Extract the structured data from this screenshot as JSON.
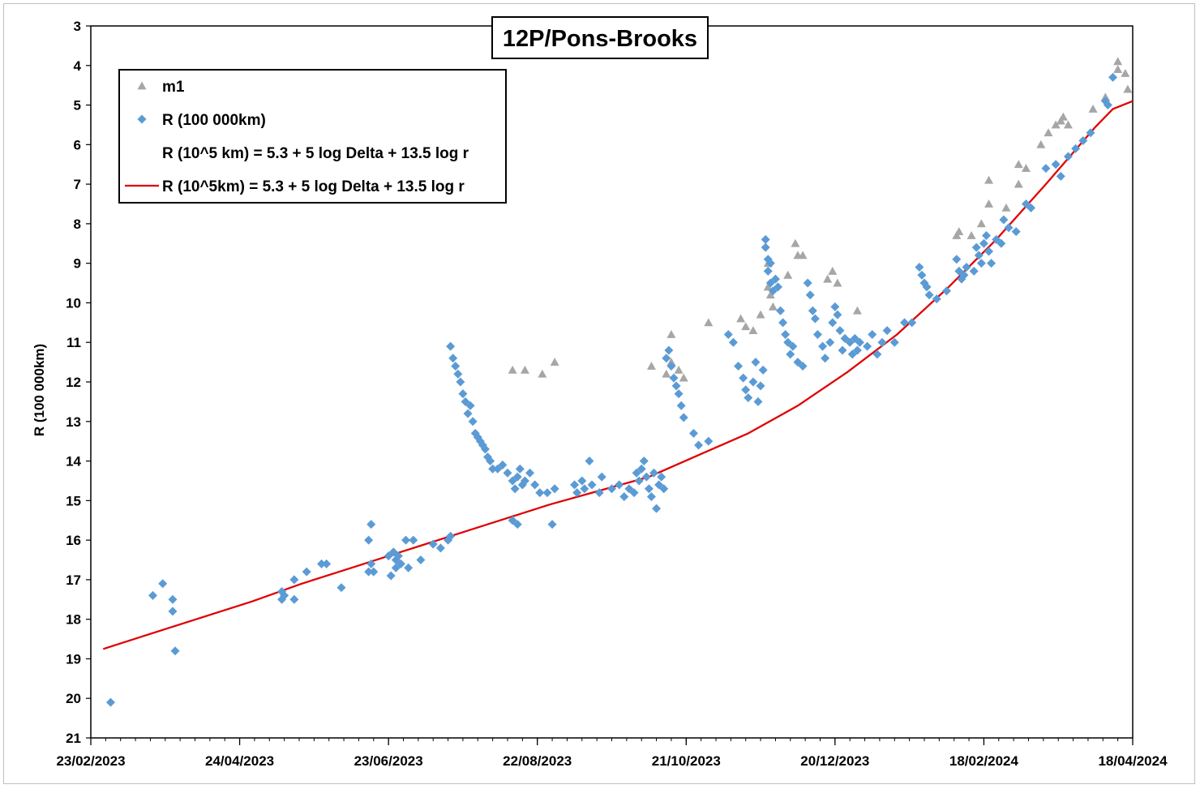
{
  "chart_data": {
    "type": "scatter",
    "title": "12P/Pons-Brooks",
    "ylabel": "R (100 000km)",
    "xlabel": "",
    "x_tick_labels": [
      "23/02/2023",
      "24/04/2023",
      "23/06/2023",
      "22/08/2023",
      "21/10/2023",
      "20/12/2023",
      "18/02/2024",
      "18/04/2024"
    ],
    "x_ticks": [
      "2023-02-23",
      "2023-04-24",
      "2023-06-23",
      "2023-08-22",
      "2023-10-21",
      "2023-12-20",
      "2024-02-18",
      "2024-04-18"
    ],
    "xlim": [
      "2023-02-23",
      "2024-04-18"
    ],
    "ylim": [
      3,
      21
    ],
    "y_inverted": true,
    "y_ticks": [
      3,
      4,
      5,
      6,
      7,
      8,
      9,
      10,
      11,
      12,
      13,
      14,
      15,
      16,
      17,
      18,
      19,
      20,
      21
    ],
    "grid": false,
    "legend_position": "top-left",
    "colors": {
      "m1": "#a6a6a6",
      "R": "#5b9bd5",
      "model": "#e00000"
    },
    "series": [
      {
        "name": "m1",
        "marker": "triangle",
        "points": [
          [
            "2023-08-12",
            11.7
          ],
          [
            "2023-08-17",
            11.7
          ],
          [
            "2023-08-24",
            11.8
          ],
          [
            "2023-08-29",
            11.5
          ],
          [
            "2023-10-07",
            11.6
          ],
          [
            "2023-10-13",
            11.8
          ],
          [
            "2023-10-15",
            11.5
          ],
          [
            "2023-10-18",
            11.7
          ],
          [
            "2023-10-20",
            11.9
          ],
          [
            "2023-10-15",
            10.8
          ],
          [
            "2023-10-30",
            10.5
          ],
          [
            "2023-11-12",
            10.4
          ],
          [
            "2023-11-14",
            10.6
          ],
          [
            "2023-11-17",
            10.7
          ],
          [
            "2023-11-20",
            10.3
          ],
          [
            "2023-11-23",
            9.0
          ],
          [
            "2023-11-23",
            9.6
          ],
          [
            "2023-11-24",
            9.8
          ],
          [
            "2023-11-25",
            10.1
          ],
          [
            "2023-12-01",
            9.3
          ],
          [
            "2023-12-04",
            8.5
          ],
          [
            "2023-12-05",
            8.8
          ],
          [
            "2023-12-07",
            8.8
          ],
          [
            "2023-12-17",
            9.4
          ],
          [
            "2023-12-19",
            9.2
          ],
          [
            "2023-12-21",
            9.5
          ],
          [
            "2023-12-29",
            10.2
          ],
          [
            "2024-02-07",
            8.3
          ],
          [
            "2024-02-08",
            8.2
          ],
          [
            "2024-02-13",
            8.3
          ],
          [
            "2024-02-17",
            8.0
          ],
          [
            "2024-02-20",
            7.5
          ],
          [
            "2024-02-20",
            6.9
          ],
          [
            "2024-02-27",
            7.6
          ],
          [
            "2024-03-03",
            6.5
          ],
          [
            "2024-03-03",
            7.0
          ],
          [
            "2024-03-06",
            6.6
          ],
          [
            "2024-03-12",
            6.0
          ],
          [
            "2024-03-15",
            5.7
          ],
          [
            "2024-03-18",
            5.5
          ],
          [
            "2024-03-20",
            5.4
          ],
          [
            "2024-03-21",
            5.3
          ],
          [
            "2024-03-23",
            5.5
          ],
          [
            "2024-04-02",
            5.1
          ],
          [
            "2024-04-07",
            4.8
          ],
          [
            "2024-04-12",
            3.9
          ],
          [
            "2024-04-12",
            4.1
          ],
          [
            "2024-04-15",
            4.2
          ],
          [
            "2024-04-16",
            4.6
          ]
        ]
      },
      {
        "name": "R (100 000km)",
        "marker": "diamond",
        "points": [
          [
            "2023-03-03",
            20.1
          ],
          [
            "2023-03-20",
            17.4
          ],
          [
            "2023-03-24",
            17.1
          ],
          [
            "2023-03-28",
            17.5
          ],
          [
            "2023-03-28",
            17.8
          ],
          [
            "2023-03-29",
            18.8
          ],
          [
            "2023-05-11",
            17.3
          ],
          [
            "2023-05-11",
            17.5
          ],
          [
            "2023-05-12",
            17.4
          ],
          [
            "2023-05-16",
            17.0
          ],
          [
            "2023-05-16",
            17.5
          ],
          [
            "2023-05-21",
            16.8
          ],
          [
            "2023-05-27",
            16.6
          ],
          [
            "2023-05-29",
            16.6
          ],
          [
            "2023-06-04",
            17.2
          ],
          [
            "2023-06-15",
            16.0
          ],
          [
            "2023-06-15",
            16.8
          ],
          [
            "2023-06-16",
            15.6
          ],
          [
            "2023-06-16",
            16.6
          ],
          [
            "2023-06-17",
            16.8
          ],
          [
            "2023-06-23",
            16.4
          ],
          [
            "2023-06-24",
            16.9
          ],
          [
            "2023-06-25",
            16.3
          ],
          [
            "2023-06-26",
            16.7
          ],
          [
            "2023-06-26",
            16.5
          ],
          [
            "2023-06-27",
            16.4
          ],
          [
            "2023-06-28",
            16.6
          ],
          [
            "2023-06-30",
            16.0
          ],
          [
            "2023-07-01",
            16.7
          ],
          [
            "2023-07-03",
            16.0
          ],
          [
            "2023-07-06",
            16.5
          ],
          [
            "2023-07-11",
            16.1
          ],
          [
            "2023-07-14",
            16.2
          ],
          [
            "2023-07-17",
            16.0
          ],
          [
            "2023-07-18",
            15.9
          ],
          [
            "2023-07-18",
            11.1
          ],
          [
            "2023-07-19",
            11.4
          ],
          [
            "2023-07-20",
            11.6
          ],
          [
            "2023-07-21",
            11.8
          ],
          [
            "2023-07-22",
            12.0
          ],
          [
            "2023-07-23",
            12.3
          ],
          [
            "2023-07-24",
            12.5
          ],
          [
            "2023-07-25",
            12.8
          ],
          [
            "2023-07-26",
            12.6
          ],
          [
            "2023-07-27",
            13.0
          ],
          [
            "2023-07-28",
            13.3
          ],
          [
            "2023-07-29",
            13.4
          ],
          [
            "2023-07-30",
            13.5
          ],
          [
            "2023-07-31",
            13.6
          ],
          [
            "2023-08-01",
            13.7
          ],
          [
            "2023-08-02",
            13.9
          ],
          [
            "2023-08-03",
            14.0
          ],
          [
            "2023-08-04",
            14.2
          ],
          [
            "2023-08-06",
            14.2
          ],
          [
            "2023-08-08",
            14.1
          ],
          [
            "2023-08-10",
            14.3
          ],
          [
            "2023-08-12",
            14.5
          ],
          [
            "2023-08-13",
            14.7
          ],
          [
            "2023-08-14",
            14.4
          ],
          [
            "2023-08-15",
            14.2
          ],
          [
            "2023-08-16",
            14.6
          ],
          [
            "2023-08-17",
            14.5
          ],
          [
            "2023-08-19",
            14.3
          ],
          [
            "2023-08-21",
            14.6
          ],
          [
            "2023-08-23",
            14.8
          ],
          [
            "2023-08-26",
            14.8
          ],
          [
            "2023-08-29",
            14.7
          ],
          [
            "2023-08-12",
            15.5
          ],
          [
            "2023-08-14",
            15.6
          ],
          [
            "2023-08-28",
            15.6
          ],
          [
            "2023-09-06",
            14.6
          ],
          [
            "2023-09-07",
            14.8
          ],
          [
            "2023-09-09",
            14.5
          ],
          [
            "2023-09-10",
            14.7
          ],
          [
            "2023-09-12",
            14.0
          ],
          [
            "2023-09-13",
            14.6
          ],
          [
            "2023-09-16",
            14.8
          ],
          [
            "2023-09-17",
            14.4
          ],
          [
            "2023-09-21",
            14.7
          ],
          [
            "2023-09-24",
            14.6
          ],
          [
            "2023-09-26",
            14.9
          ],
          [
            "2023-09-28",
            14.7
          ],
          [
            "2023-09-30",
            14.8
          ],
          [
            "2023-10-01",
            14.3
          ],
          [
            "2023-10-02",
            14.5
          ],
          [
            "2023-10-03",
            14.2
          ],
          [
            "2023-10-04",
            14.0
          ],
          [
            "2023-10-05",
            14.4
          ],
          [
            "2023-10-06",
            14.7
          ],
          [
            "2023-10-07",
            14.9
          ],
          [
            "2023-10-08",
            14.3
          ],
          [
            "2023-10-09",
            15.2
          ],
          [
            "2023-10-10",
            14.6
          ],
          [
            "2023-10-11",
            14.4
          ],
          [
            "2023-10-12",
            14.7
          ],
          [
            "2023-10-13",
            11.4
          ],
          [
            "2023-10-14",
            11.2
          ],
          [
            "2023-10-15",
            11.6
          ],
          [
            "2023-10-16",
            11.9
          ],
          [
            "2023-10-17",
            12.1
          ],
          [
            "2023-10-18",
            12.3
          ],
          [
            "2023-10-19",
            12.6
          ],
          [
            "2023-10-20",
            12.9
          ],
          [
            "2023-10-24",
            13.3
          ],
          [
            "2023-10-26",
            13.6
          ],
          [
            "2023-10-30",
            13.5
          ],
          [
            "2023-11-07",
            10.8
          ],
          [
            "2023-11-09",
            11.0
          ],
          [
            "2023-11-11",
            11.6
          ],
          [
            "2023-11-13",
            11.9
          ],
          [
            "2023-11-14",
            12.2
          ],
          [
            "2023-11-15",
            12.4
          ],
          [
            "2023-11-17",
            12.0
          ],
          [
            "2023-11-18",
            11.5
          ],
          [
            "2023-11-19",
            12.5
          ],
          [
            "2023-11-20",
            12.1
          ],
          [
            "2023-11-21",
            11.7
          ],
          [
            "2023-11-22",
            8.4
          ],
          [
            "2023-11-22",
            8.6
          ],
          [
            "2023-11-23",
            8.9
          ],
          [
            "2023-11-23",
            9.2
          ],
          [
            "2023-11-24",
            9.0
          ],
          [
            "2023-11-24",
            9.5
          ],
          [
            "2023-11-25",
            9.7
          ],
          [
            "2023-11-26",
            9.4
          ],
          [
            "2023-11-27",
            9.6
          ],
          [
            "2023-11-28",
            10.2
          ],
          [
            "2023-11-29",
            10.5
          ],
          [
            "2023-11-30",
            10.8
          ],
          [
            "2023-12-01",
            11.0
          ],
          [
            "2023-12-02",
            11.3
          ],
          [
            "2023-12-03",
            11.1
          ],
          [
            "2023-12-05",
            11.5
          ],
          [
            "2023-12-07",
            11.6
          ],
          [
            "2023-12-09",
            9.5
          ],
          [
            "2023-12-10",
            9.8
          ],
          [
            "2023-12-11",
            10.2
          ],
          [
            "2023-12-12",
            10.4
          ],
          [
            "2023-12-13",
            10.8
          ],
          [
            "2023-12-15",
            11.1
          ],
          [
            "2023-12-16",
            11.4
          ],
          [
            "2023-12-18",
            11.0
          ],
          [
            "2023-12-19",
            10.5
          ],
          [
            "2023-12-20",
            10.1
          ],
          [
            "2023-12-21",
            10.3
          ],
          [
            "2023-12-22",
            10.7
          ],
          [
            "2023-12-23",
            11.2
          ],
          [
            "2023-12-24",
            10.9
          ],
          [
            "2023-12-26",
            11.0
          ],
          [
            "2023-12-27",
            11.3
          ],
          [
            "2023-12-28",
            10.9
          ],
          [
            "2023-12-29",
            11.2
          ],
          [
            "2023-12-30",
            11.0
          ],
          [
            "2024-01-02",
            11.1
          ],
          [
            "2024-01-04",
            10.8
          ],
          [
            "2024-01-06",
            11.3
          ],
          [
            "2024-01-08",
            11.0
          ],
          [
            "2024-01-10",
            10.7
          ],
          [
            "2024-01-13",
            11.0
          ],
          [
            "2024-01-17",
            10.5
          ],
          [
            "2024-01-20",
            10.5
          ],
          [
            "2024-01-23",
            9.1
          ],
          [
            "2024-01-24",
            9.3
          ],
          [
            "2024-01-25",
            9.5
          ],
          [
            "2024-01-26",
            9.6
          ],
          [
            "2024-01-27",
            9.8
          ],
          [
            "2024-01-30",
            9.9
          ],
          [
            "2024-02-03",
            9.7
          ],
          [
            "2024-02-07",
            8.9
          ],
          [
            "2024-02-08",
            9.2
          ],
          [
            "2024-02-09",
            9.4
          ],
          [
            "2024-02-10",
            9.3
          ],
          [
            "2024-02-11",
            9.1
          ],
          [
            "2024-02-14",
            9.2
          ],
          [
            "2024-02-15",
            8.6
          ],
          [
            "2024-02-16",
            8.8
          ],
          [
            "2024-02-17",
            9.0
          ],
          [
            "2024-02-18",
            8.5
          ],
          [
            "2024-02-19",
            8.3
          ],
          [
            "2024-02-20",
            8.7
          ],
          [
            "2024-02-21",
            9.0
          ],
          [
            "2024-02-23",
            8.4
          ],
          [
            "2024-02-25",
            8.5
          ],
          [
            "2024-02-26",
            7.9
          ],
          [
            "2024-02-28",
            8.1
          ],
          [
            "2024-03-02",
            8.2
          ],
          [
            "2024-03-06",
            7.5
          ],
          [
            "2024-03-08",
            7.6
          ],
          [
            "2024-03-14",
            6.6
          ],
          [
            "2024-03-18",
            6.5
          ],
          [
            "2024-03-20",
            6.8
          ],
          [
            "2024-03-23",
            6.3
          ],
          [
            "2024-03-26",
            6.1
          ],
          [
            "2024-03-29",
            5.9
          ],
          [
            "2024-04-01",
            5.7
          ],
          [
            "2024-04-07",
            4.9
          ],
          [
            "2024-04-08",
            5.0
          ],
          [
            "2024-04-10",
            4.3
          ]
        ]
      },
      {
        "name": "R (10^5 km) = 5.3 + 5 log Delta + 13.5 log r",
        "marker": "none",
        "points": []
      },
      {
        "name": "R (10^5km) = 5.3 + 5 log Delta + 13.5 log r",
        "marker": "line",
        "points": [
          [
            "2023-02-28",
            18.75
          ],
          [
            "2023-03-20",
            18.35
          ],
          [
            "2023-04-09",
            17.95
          ],
          [
            "2023-04-29",
            17.55
          ],
          [
            "2023-05-19",
            17.1
          ],
          [
            "2023-06-08",
            16.7
          ],
          [
            "2023-06-28",
            16.3
          ],
          [
            "2023-07-18",
            15.9
          ],
          [
            "2023-08-07",
            15.5
          ],
          [
            "2023-08-27",
            15.1
          ],
          [
            "2023-09-16",
            14.75
          ],
          [
            "2023-10-06",
            14.4
          ],
          [
            "2023-10-26",
            13.85
          ],
          [
            "2023-11-15",
            13.3
          ],
          [
            "2023-12-05",
            12.6
          ],
          [
            "2023-12-25",
            11.75
          ],
          [
            "2024-01-14",
            10.8
          ],
          [
            "2024-02-03",
            9.65
          ],
          [
            "2024-02-23",
            8.4
          ],
          [
            "2024-03-14",
            7.0
          ],
          [
            "2024-04-03",
            5.55
          ],
          [
            "2024-04-10",
            5.1
          ],
          [
            "2024-04-18",
            4.9
          ]
        ]
      }
    ]
  }
}
